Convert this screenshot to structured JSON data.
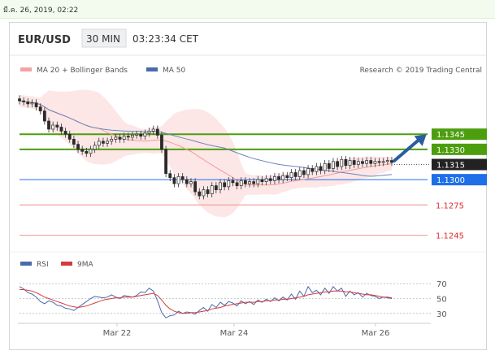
{
  "timestamp": "มี.ค. 26, 2019, 02:22",
  "header": {
    "pair": "EUR/USD",
    "interval": "30 MIN",
    "time": "03:23:34 CET"
  },
  "legend": {
    "ma20": {
      "label": "MA 20 + Bollinger Bands",
      "color": "#f4a3a3"
    },
    "ma50": {
      "label": "MA 50",
      "color": "#4a6aab"
    },
    "credit": "Research © 2019 Trading Central"
  },
  "rsi_legend": {
    "rsi": "RSI",
    "ma": "9MA"
  },
  "chart_data": [
    {
      "type": "candlestick",
      "title": "EUR/USD 30 MIN",
      "ylim": [
        1.1235,
        1.1395
      ],
      "x_labels": [
        "Mar 22",
        "Mar 24",
        "Mar 26"
      ],
      "close": [
        1.1378,
        1.1377,
        1.1375,
        1.1376,
        1.1372,
        1.1368,
        1.1358,
        1.135,
        1.1354,
        1.1352,
        1.1348,
        1.1345,
        1.134,
        1.1335,
        1.133,
        1.1328,
        1.1326,
        1.133,
        1.1334,
        1.1338,
        1.1336,
        1.1338,
        1.134,
        1.1342,
        1.134,
        1.1343,
        1.1342,
        1.1344,
        1.1345,
        1.1343,
        1.1346,
        1.1348,
        1.135,
        1.1344,
        1.133,
        1.1306,
        1.1302,
        1.1296,
        1.1303,
        1.13,
        1.1296,
        1.1298,
        1.1288,
        1.1284,
        1.129,
        1.1286,
        1.1294,
        1.129,
        1.1297,
        1.1293,
        1.1299,
        1.1297,
        1.1294,
        1.1299,
        1.1296,
        1.1298,
        1.1296,
        1.13,
        1.1298,
        1.1301,
        1.1299,
        1.1303,
        1.13,
        1.1304,
        1.1302,
        1.1307,
        1.1303,
        1.1309,
        1.1305,
        1.1311,
        1.1308,
        1.1313,
        1.1309,
        1.1316,
        1.1311,
        1.1318,
        1.1313,
        1.132,
        1.1314,
        1.1319,
        1.1315,
        1.1318,
        1.1316,
        1.1319,
        1.1316,
        1.1318,
        1.1317,
        1.1318,
        1.1319,
        1.1317
      ],
      "levels": [
        {
          "label": "1.1345",
          "value": 1.1345,
          "kind": "resistance",
          "color": "#4d9e0f"
        },
        {
          "label": "1.1330",
          "value": 1.133,
          "kind": "resistance",
          "color": "#4d9e0f"
        },
        {
          "label": "1.1315",
          "value": 1.1315,
          "kind": "current",
          "color": "#222222"
        },
        {
          "label": "1.1300",
          "value": 1.13,
          "kind": "pivot",
          "color": "#1e6fe8"
        },
        {
          "label": "1.1275",
          "value": 1.1275,
          "kind": "support",
          "color": "#e02b2b"
        },
        {
          "label": "1.1245",
          "value": 1.1245,
          "kind": "support",
          "color": "#e02b2b"
        }
      ]
    },
    {
      "type": "line",
      "title": "RSI",
      "ylim": [
        20,
        80
      ],
      "y_ticks": [
        70,
        50,
        30
      ],
      "series": [
        {
          "name": "RSI",
          "color": "#4a6aab",
          "values": [
            66,
            63,
            58,
            56,
            52,
            46,
            43,
            47,
            45,
            41,
            40,
            37,
            36,
            34,
            38,
            42,
            46,
            50,
            53,
            52,
            51,
            52,
            55,
            52,
            50,
            54,
            53,
            52,
            54,
            59,
            58,
            64,
            60,
            47,
            31,
            24,
            27,
            28,
            33,
            30,
            32,
            31,
            29,
            34,
            38,
            33,
            42,
            38,
            45,
            41,
            46,
            44,
            40,
            47,
            43,
            46,
            42,
            48,
            45,
            49,
            46,
            51,
            47,
            52,
            48,
            56,
            49,
            60,
            53,
            66,
            58,
            61,
            55,
            64,
            57,
            66,
            60,
            64,
            53,
            60,
            55,
            58,
            52,
            57,
            54,
            53,
            50,
            52,
            51,
            50
          ]
        },
        {
          "name": "9MA",
          "color": "#d63a3a",
          "values": [
            62,
            62,
            61,
            60,
            58,
            55,
            52,
            50,
            48,
            46,
            44,
            42,
            40,
            39,
            38,
            39,
            40,
            42,
            44,
            46,
            48,
            49,
            50,
            51,
            51,
            52,
            52,
            52,
            53,
            54,
            55,
            56,
            57,
            54,
            48,
            41,
            36,
            33,
            31,
            30,
            30,
            31,
            31,
            32,
            33,
            34,
            36,
            37,
            38,
            40,
            41,
            42,
            43,
            44,
            45,
            45,
            45,
            46,
            46,
            47,
            47,
            48,
            48,
            49,
            49,
            50,
            51,
            52,
            53,
            55,
            56,
            57,
            58,
            59,
            59,
            60,
            60,
            60,
            59,
            59,
            58,
            57,
            56,
            55,
            55,
            54,
            53,
            52,
            52,
            51
          ]
        }
      ]
    }
  ]
}
